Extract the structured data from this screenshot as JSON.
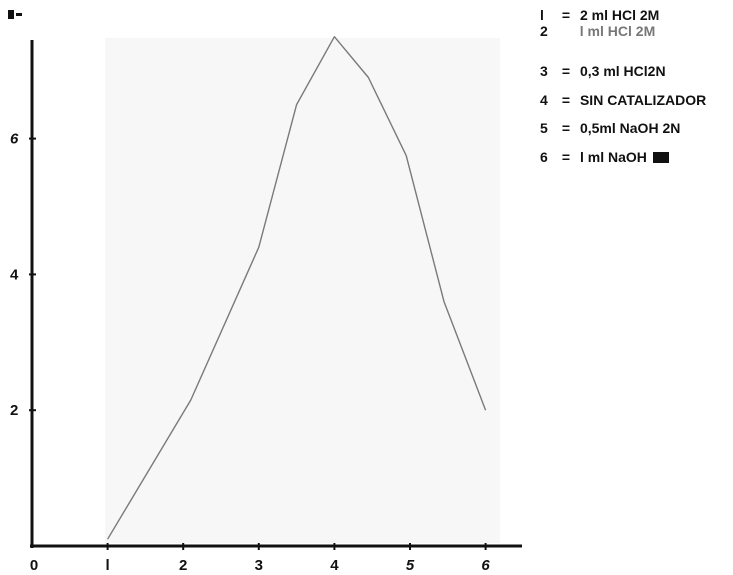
{
  "chart_data": {
    "type": "line",
    "title": "",
    "xlabel": "",
    "ylabel": "",
    "xlim": [
      0,
      6.3
    ],
    "ylim": [
      0,
      7.5
    ],
    "x_ticks": [
      {
        "value": 0,
        "label": "0",
        "italic": false
      },
      {
        "value": 1,
        "label": "l",
        "italic": false
      },
      {
        "value": 2,
        "label": "2",
        "italic": false
      },
      {
        "value": 3,
        "label": "3",
        "italic": false
      },
      {
        "value": 4,
        "label": "4",
        "italic": false
      },
      {
        "value": 5,
        "label": "5",
        "italic": true
      },
      {
        "value": 6,
        "label": "6",
        "italic": true
      }
    ],
    "y_ticks": [
      {
        "value": 2,
        "label": "2",
        "italic": false
      },
      {
        "value": 4,
        "label": "4",
        "italic": false
      },
      {
        "value": 6,
        "label": "6",
        "italic": true
      }
    ],
    "series": [
      {
        "color": "#7a7a7a",
        "x": [
          1.0,
          2.1,
          3.0,
          3.5,
          4.0,
          4.45,
          4.95,
          5.45,
          6.0
        ],
        "y": [
          0.1,
          2.15,
          4.4,
          6.5,
          7.5,
          6.9,
          5.75,
          3.6,
          2.0
        ]
      }
    ],
    "grid": false,
    "legend_position": "top-right"
  },
  "legend": {
    "items": [
      {
        "num": "l",
        "sep": "=",
        "text": "2 ml HCl 2M"
      },
      {
        "num": "2",
        "sep": "",
        "text": "l ml HCl 2M"
      },
      {
        "num": "3",
        "sep": "=",
        "text": "0,3 ml HCl2N"
      },
      {
        "num": "4",
        "sep": "=",
        "text": "SIN CATALIZADOR"
      },
      {
        "num": "5",
        "sep": "=",
        "text": "0,5ml NaOH 2N"
      },
      {
        "num": "6",
        "sep": "=",
        "text": "l ml NaOH"
      }
    ]
  }
}
